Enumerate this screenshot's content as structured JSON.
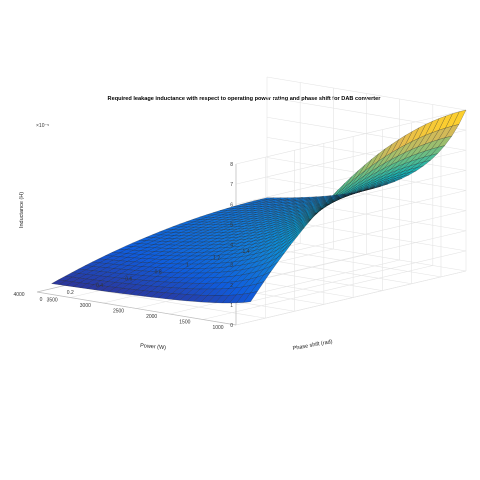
{
  "chart_data": {
    "type": "surface",
    "title": "Required leakage inductance with respect to operating power rating and phase shift for DAB converter",
    "xlabel": "Power (W)",
    "ylabel": "Phase shift (rad)",
    "zlabel": "Inductance (H)",
    "z_exponent": "×10⁻⁵",
    "x_ticks": [
      "1000",
      "1500",
      "2000",
      "2500",
      "3000",
      "3500",
      "4000"
    ],
    "y_ticks": [
      "0",
      "0.2",
      "0.4",
      "0.6",
      "0.8",
      "1",
      "1.2",
      "1.4"
    ],
    "z_ticks": [
      "0",
      "1",
      "2",
      "3",
      "4",
      "5",
      "6",
      "7",
      "8"
    ],
    "xlim": [
      1000,
      4000
    ],
    "ylim": [
      0,
      1.5708
    ],
    "zlim": [
      0,
      8
    ],
    "colormap": "parula",
    "grid": true,
    "corner_values_e-5": {
      "P1000_phi0.1": 1.8,
      "P1000_phi1.571": 8.0,
      "P4000_phi0.1": 0.45,
      "P4000_phi1.571": 1.0
    }
  }
}
